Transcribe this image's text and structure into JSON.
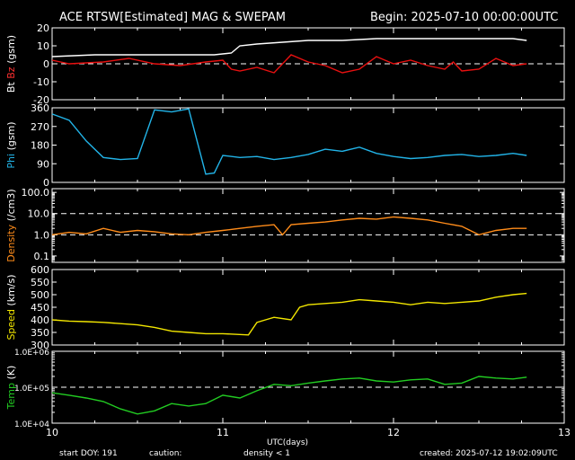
{
  "header": {
    "title": "ACE RTSW[Estimated] MAG & SWEPAM",
    "begin": "Begin: 2025-07-10 00:00:00UTC"
  },
  "footer": {
    "start_doy": "start DOY: 191",
    "caution": "caution:",
    "density_note": "density < 1",
    "created": "created: 2025-07-12 19:02:09UTC"
  },
  "colors": {
    "bt": "#ffffff",
    "bz": "#e81010",
    "phi": "#22b4e8",
    "density": "#ff8c1a",
    "speed": "#f2e600",
    "temp": "#22cc22",
    "bz_label": "#ff3030",
    "density_note": "#ff8c1a"
  },
  "chart_data": {
    "type": "line",
    "xlabel": "UTC(days)",
    "x_ticks": [
      "10",
      "11",
      "12",
      "13"
    ],
    "xlim": [
      10,
      13
    ],
    "panels": [
      {
        "id": "mag",
        "ylabel_parts": [
          "Bt",
          "Bz",
          "(gsm)"
        ],
        "y_ticks": [
          "20",
          "10",
          "0",
          "-10",
          "-20"
        ],
        "ylim": [
          -20,
          20
        ],
        "dashed_at": [
          0
        ],
        "series": [
          {
            "name": "Bt",
            "color_key": "bt",
            "x": [
              10.0,
              10.25,
              10.5,
              10.75,
              10.95,
              11.05,
              11.1,
              11.2,
              11.35,
              11.5,
              11.7,
              11.9,
              12.1,
              12.3,
              12.5,
              12.7,
              12.78
            ],
            "y": [
              4,
              5,
              5,
              5,
              5,
              6,
              10,
              11,
              12,
              13,
              13,
              14,
              14,
              14,
              14,
              14,
              13
            ]
          },
          {
            "name": "Bz",
            "color_key": "bz",
            "x": [
              10.0,
              10.1,
              10.3,
              10.45,
              10.6,
              10.75,
              10.9,
              11.0,
              11.05,
              11.1,
              11.2,
              11.3,
              11.4,
              11.5,
              11.6,
              11.7,
              11.8,
              11.9,
              12.0,
              12.1,
              12.2,
              12.3,
              12.35,
              12.4,
              12.5,
              12.6,
              12.7,
              12.78
            ],
            "y": [
              2,
              0,
              1,
              3,
              0,
              -1,
              1,
              2,
              -3,
              -4,
              -2,
              -5,
              5,
              1,
              -1,
              -5,
              -3,
              4,
              0,
              2,
              -1,
              -3,
              1,
              -4,
              -3,
              3,
              -1,
              0
            ]
          }
        ]
      },
      {
        "id": "phi",
        "ylabel_parts": [
          "Phi",
          "(gsm)"
        ],
        "y_ticks": [
          "360",
          "270",
          "180",
          "90",
          "0"
        ],
        "ylim": [
          0,
          360
        ],
        "dashed_at": [],
        "series": [
          {
            "name": "Phi",
            "color_key": "phi",
            "x": [
              10.0,
              10.1,
              10.2,
              10.3,
              10.4,
              10.5,
              10.6,
              10.7,
              10.8,
              10.9,
              10.95,
              11.0,
              11.1,
              11.2,
              11.3,
              11.4,
              11.5,
              11.6,
              11.7,
              11.8,
              11.9,
              12.0,
              12.1,
              12.2,
              12.3,
              12.4,
              12.5,
              12.6,
              12.7,
              12.78
            ],
            "y": [
              330,
              300,
              200,
              120,
              110,
              115,
              350,
              340,
              355,
              40,
              45,
              130,
              120,
              125,
              110,
              120,
              135,
              160,
              150,
              170,
              140,
              125,
              115,
              120,
              130,
              135,
              125,
              130,
              140,
              130
            ]
          }
        ]
      },
      {
        "id": "density",
        "ylabel_parts": [
          "Density",
          "(/cm3)"
        ],
        "y_ticks": [
          "100.0",
          "10.0",
          "1.0",
          "0.1"
        ],
        "log": true,
        "ylim": [
          0.05,
          150
        ],
        "dashed_at": [
          10,
          1
        ],
        "series": [
          {
            "name": "Density",
            "color_key": "density",
            "x": [
              10.0,
              10.1,
              10.2,
              10.3,
              10.4,
              10.5,
              10.6,
              10.7,
              10.8,
              10.9,
              11.0,
              11.1,
              11.2,
              11.3,
              11.35,
              11.4,
              11.5,
              11.6,
              11.7,
              11.8,
              11.9,
              12.0,
              12.1,
              12.2,
              12.3,
              12.4,
              12.5,
              12.6,
              12.7,
              12.78
            ],
            "y": [
              1.0,
              1.3,
              1.1,
              2.0,
              1.3,
              1.6,
              1.4,
              1.1,
              1.0,
              1.3,
              1.6,
              2.0,
              2.5,
              3.0,
              1.0,
              3.0,
              3.5,
              4.0,
              5.0,
              6.0,
              5.5,
              7.0,
              6.0,
              5.0,
              3.5,
              2.5,
              1.0,
              1.6,
              2.0,
              2.0
            ]
          }
        ]
      },
      {
        "id": "speed",
        "ylabel_parts": [
          "Speed",
          "(km/s)"
        ],
        "y_ticks": [
          "600",
          "550",
          "500",
          "450",
          "400",
          "350",
          "300"
        ],
        "ylim": [
          300,
          600
        ],
        "dashed_at": [],
        "series": [
          {
            "name": "Speed",
            "color_key": "speed",
            "x": [
              10.0,
              10.1,
              10.2,
              10.3,
              10.4,
              10.5,
              10.6,
              10.7,
              10.8,
              10.9,
              11.0,
              11.15,
              11.2,
              11.25,
              11.3,
              11.4,
              11.45,
              11.5,
              11.6,
              11.7,
              11.8,
              11.9,
              12.0,
              12.1,
              12.2,
              12.3,
              12.4,
              12.5,
              12.6,
              12.7,
              12.78
            ],
            "y": [
              400,
              395,
              393,
              390,
              385,
              380,
              370,
              355,
              350,
              345,
              345,
              340,
              390,
              400,
              410,
              400,
              450,
              460,
              465,
              470,
              480,
              475,
              470,
              460,
              470,
              465,
              470,
              475,
              490,
              500,
              505
            ]
          }
        ]
      },
      {
        "id": "temp",
        "ylabel_parts": [
          "Temp",
          "(K)"
        ],
        "y_ticks": [
          "1.0E+06",
          "1.0E+05",
          "1.0E+04"
        ],
        "log": true,
        "ylim": [
          10000,
          1000000
        ],
        "dashed_at": [
          100000
        ],
        "series": [
          {
            "name": "Temp",
            "color_key": "temp",
            "x": [
              10.0,
              10.1,
              10.2,
              10.3,
              10.4,
              10.5,
              10.6,
              10.7,
              10.8,
              10.9,
              11.0,
              11.1,
              11.2,
              11.3,
              11.4,
              11.5,
              11.6,
              11.7,
              11.8,
              11.9,
              12.0,
              12.1,
              12.2,
              12.3,
              12.4,
              12.5,
              12.6,
              12.7,
              12.78
            ],
            "y": [
              70000,
              60000,
              50000,
              40000,
              25000,
              18000,
              22000,
              35000,
              30000,
              35000,
              60000,
              50000,
              80000,
              120000,
              110000,
              130000,
              150000,
              170000,
              180000,
              150000,
              140000,
              160000,
              170000,
              120000,
              130000,
              200000,
              180000,
              170000,
              190000
            ]
          }
        ]
      }
    ]
  }
}
